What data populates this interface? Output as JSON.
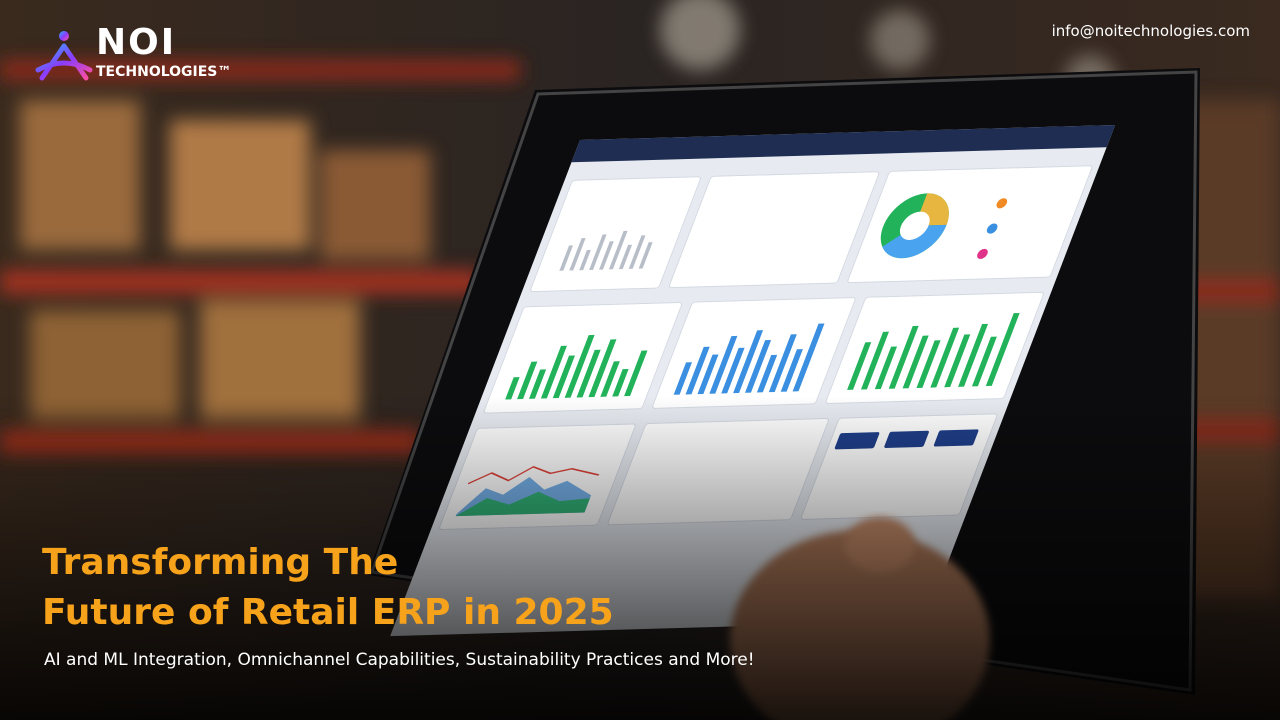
{
  "logo": {
    "name": "NOI",
    "tagline": "TECHNOLOGIES™"
  },
  "contact": {
    "email": "info@noitechnologies.com"
  },
  "headline": {
    "lines": [
      "Transforming The",
      "Future of Retail ERP in 2025"
    ]
  },
  "subtitle": "AI and ML Integration, Omnichannel Capabilities, Sustainability Practices and More!"
}
